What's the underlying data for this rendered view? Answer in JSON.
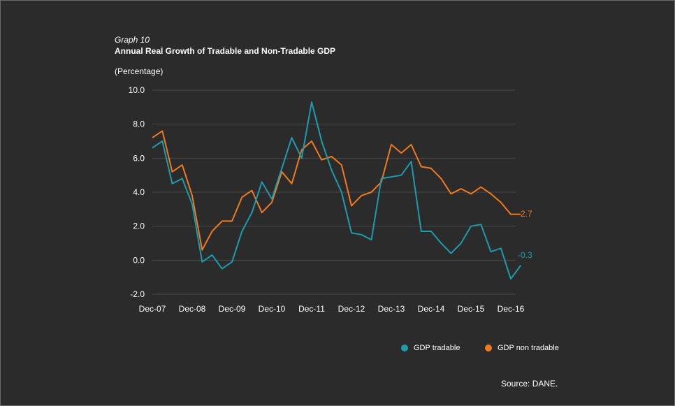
{
  "header": {
    "graph_number": "Graph 10",
    "title": "Annual Real Growth of Tradable and Non-Tradable GDP",
    "unit": "(Percentage)"
  },
  "source": "Source: DANE.",
  "colors": {
    "tradable": "#1b9bb0",
    "non_tradable": "#f07a1a",
    "grid": "#4a4a4a",
    "background": "#2b2b2b"
  },
  "chart_data": {
    "type": "line",
    "title": "Annual Real Growth of Tradable and Non-Tradable GDP",
    "ylabel": "(Percentage)",
    "ylim": [
      -2,
      10
    ],
    "y_ticks": [
      "10.0",
      "8.0",
      "6.0",
      "4.0",
      "2.0",
      "0.0",
      "-2.0"
    ],
    "y_tick_values": [
      10,
      8,
      6,
      4,
      2,
      0,
      -2
    ],
    "x_tick_labels": [
      "Dec-07",
      "Dec-08",
      "Dec-09",
      "Dec-10",
      "Dec-11",
      "Dec-12",
      "Dec-13",
      "Dec-14",
      "Dec-15",
      "Dec-16"
    ],
    "x": [
      "Dec-07",
      "Mar-08",
      "Jun-08",
      "Sep-08",
      "Dec-08",
      "Mar-09",
      "Jun-09",
      "Sep-09",
      "Dec-09",
      "Mar-10",
      "Jun-10",
      "Sep-10",
      "Dec-10",
      "Mar-11",
      "Jun-11",
      "Sep-11",
      "Dec-11",
      "Mar-12",
      "Jun-12",
      "Sep-12",
      "Dec-12",
      "Mar-13",
      "Jun-13",
      "Sep-13",
      "Dec-13",
      "Mar-14",
      "Jun-14",
      "Sep-14",
      "Dec-14",
      "Mar-15",
      "Jun-15",
      "Sep-15",
      "Dec-15",
      "Mar-16",
      "Jun-16",
      "Sep-16",
      "Dec-16",
      "Mar-17"
    ],
    "series": [
      {
        "name": "GDP tradable",
        "values": [
          6.6,
          7.0,
          4.5,
          4.8,
          3.3,
          -0.1,
          0.3,
          -0.5,
          -0.1,
          1.7,
          2.8,
          4.6,
          3.6,
          5.4,
          7.2,
          6.0,
          9.3,
          7.0,
          5.3,
          4.0,
          1.6,
          1.5,
          1.2,
          4.8,
          4.9,
          5.0,
          5.8,
          1.7,
          1.7,
          1.0,
          0.4,
          1.0,
          2.0,
          2.1,
          0.5,
          0.7,
          -1.1,
          -0.3
        ],
        "end_label": "-0.3"
      },
      {
        "name": "GDP non tradable",
        "values": [
          7.2,
          7.6,
          5.2,
          5.6,
          3.8,
          0.6,
          1.7,
          2.3,
          2.3,
          3.7,
          4.1,
          2.8,
          3.4,
          5.2,
          4.5,
          6.5,
          7.0,
          5.9,
          6.1,
          5.6,
          3.2,
          3.8,
          4.0,
          4.6,
          6.8,
          6.3,
          6.8,
          5.5,
          5.4,
          4.8,
          3.9,
          4.2,
          3.9,
          4.3,
          3.9,
          3.4,
          2.7,
          2.7
        ],
        "end_label": "2.7"
      }
    ],
    "grid": true,
    "legend_position": "bottom-right"
  }
}
